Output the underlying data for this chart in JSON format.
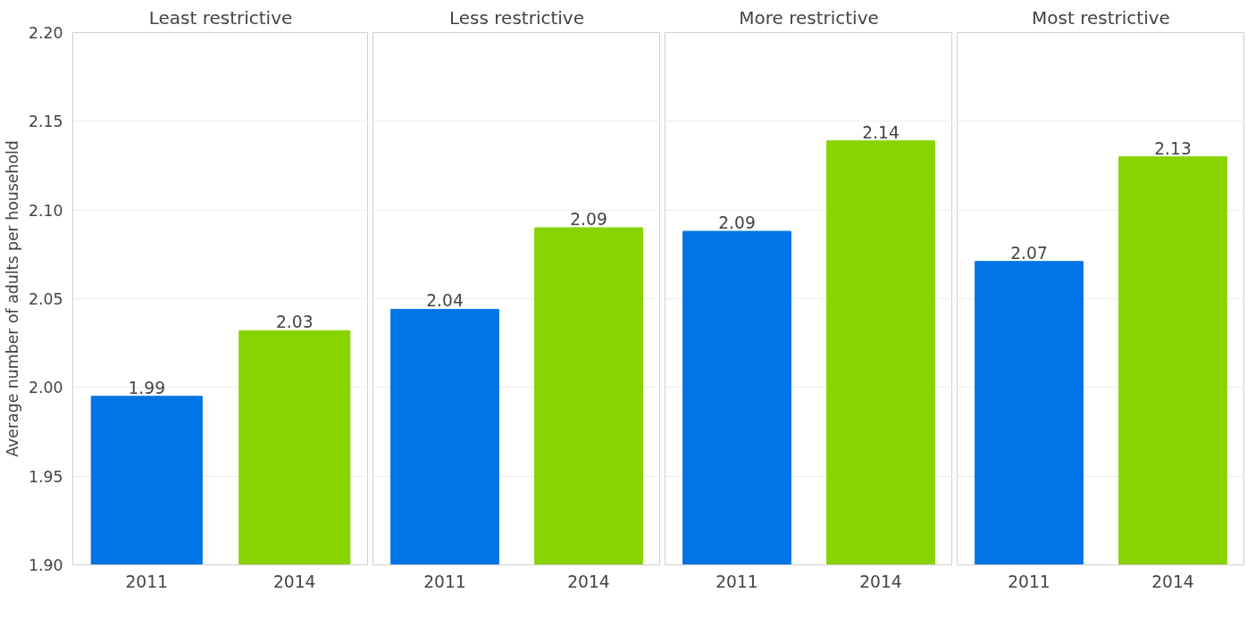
{
  "chart_data": [
    {
      "type": "bar",
      "title": "Least restrictive",
      "ylabel": "Average number of adults per household",
      "categories": [
        "2011",
        "2014"
      ],
      "values": [
        1.995,
        2.032
      ],
      "value_labels": [
        "1.99",
        "2.03"
      ],
      "colors": [
        "#0073e6",
        "#88d400"
      ],
      "ylim": [
        1.9,
        2.2
      ],
      "yticks": [
        {
          "value": 1.9,
          "label": "1.90"
        },
        {
          "value": 1.95,
          "label": "1.95"
        },
        {
          "value": 2.0,
          "label": "2.00"
        },
        {
          "value": 2.05,
          "label": "2.05"
        },
        {
          "value": 2.1,
          "label": "2.10"
        },
        {
          "value": 2.15,
          "label": "2.15"
        },
        {
          "value": 2.2,
          "label": "2.20"
        }
      ],
      "grid": "y"
    },
    {
      "type": "bar",
      "title": "Less restrictive",
      "categories": [
        "2011",
        "2014"
      ],
      "values": [
        2.044,
        2.09
      ],
      "value_labels": [
        "2.04",
        "2.09"
      ],
      "colors": [
        "#0073e6",
        "#88d400"
      ],
      "ylim": [
        1.9,
        2.2
      ],
      "tick_labels": "x",
      "grid": "y"
    },
    {
      "type": "bar",
      "title": "More restrictive",
      "categories": [
        "2011",
        "2014"
      ],
      "values": [
        2.088,
        2.139
      ],
      "value_labels": [
        "2.09",
        "2.14"
      ],
      "colors": [
        "#0073e6",
        "#88d400"
      ],
      "ylim": [
        1.9,
        2.2
      ],
      "tick_labels": "x",
      "grid": "y"
    },
    {
      "type": "bar",
      "title": "Most restrictive",
      "categories": [
        "2011",
        "2014"
      ],
      "values": [
        2.071,
        2.13
      ],
      "value_labels": [
        "2.07",
        "2.13"
      ],
      "colors": [
        "#0073e6",
        "#88d400"
      ],
      "ylim": [
        1.9,
        2.2
      ],
      "tick_labels": "x",
      "grid": "y"
    }
  ]
}
